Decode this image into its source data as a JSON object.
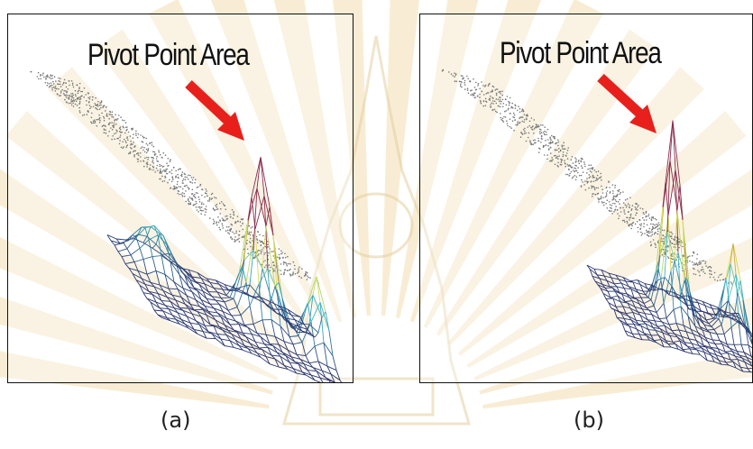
{
  "figure": {
    "panels": [
      {
        "id": "a",
        "annotation": "Pivot Point Area",
        "caption": "(a)"
      },
      {
        "id": "b",
        "annotation": "Pivot Point Area",
        "caption": "(b)"
      }
    ]
  },
  "colors": {
    "arrow": "#e8201c",
    "mesh_low": "#2a2f6a",
    "mesh_mid": "#37b7c9",
    "mesh_band": "#e6e24a",
    "mesh_high": "#8a2a4a",
    "watermark": "#f3dfb0"
  }
}
